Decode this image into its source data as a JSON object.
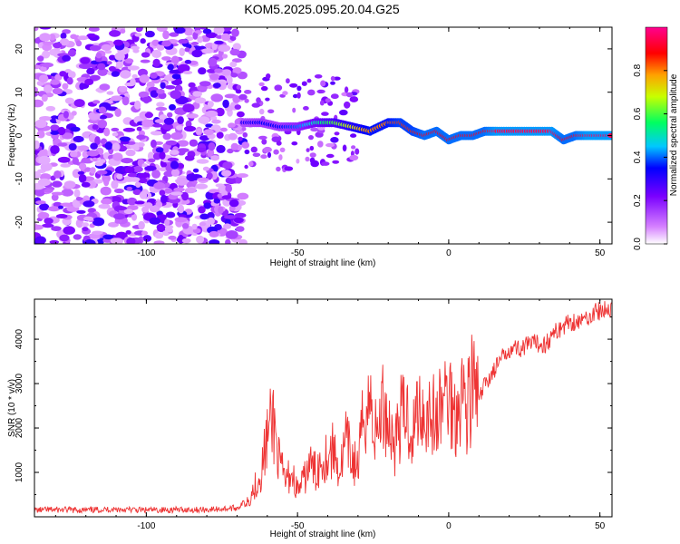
{
  "title": "KOM5.2025.095.20.04.G25",
  "colors": {
    "series_line": "#ee3333",
    "colorbar": [
      "#ffffff",
      "#a020f0",
      "#0000ff",
      "#00ffff",
      "#00ff00",
      "#ffff00",
      "#ff0000",
      "#ff0080"
    ]
  },
  "chart_data": [
    {
      "type": "heatmap",
      "xlabel": "Height of straight line (km)",
      "ylabel": "Frequency (Hz)",
      "xlim": [
        -137,
        54
      ],
      "ylim": [
        -25,
        25
      ],
      "x_ticks": [
        "-100",
        "-50",
        "0",
        "50"
      ],
      "y_ticks": [
        "20",
        "10",
        "0",
        "-10",
        "-20"
      ],
      "colorbar": {
        "label": "Normalized spectral amplitude",
        "range": [
          0,
          1
        ],
        "ticks": [
          "0.0",
          "0.2",
          "0.4",
          "0.6",
          "0.8"
        ]
      },
      "signal_track": {
        "x": [
          -68,
          -62,
          -56,
          -50,
          -44,
          -38,
          -32,
          -26,
          -20,
          -16,
          -12,
          -8,
          -4,
          0,
          4,
          8,
          12,
          16,
          22,
          28,
          34,
          38,
          42,
          46,
          50,
          54
        ],
        "freq": [
          3,
          3,
          2,
          2,
          3,
          3,
          2,
          1,
          3,
          3,
          1,
          0,
          1,
          -1,
          0,
          0,
          1,
          1,
          1,
          1,
          1,
          -1,
          0,
          0,
          0,
          0
        ],
        "amplitude": [
          0.3,
          0.35,
          0.35,
          0.4,
          0.5,
          0.6,
          0.7,
          0.8,
          0.8,
          0.85,
          0.85,
          0.9,
          0.9,
          0.9,
          0.9,
          0.9,
          0.9,
          0.95,
          0.95,
          0.95,
          0.95,
          0.9,
          0.9,
          0.95,
          0.95,
          0.95
        ]
      }
    },
    {
      "type": "line",
      "xlabel": "Height of straight line (km)",
      "ylabel": "SNR (10 * v/v)",
      "xlim": [
        -137,
        54
      ],
      "ylim": [
        0,
        4900
      ],
      "x_ticks": [
        "-100",
        "-50",
        "0",
        "50"
      ],
      "y_ticks": [
        "4000",
        "3000",
        "2000",
        "1000"
      ],
      "series": [
        {
          "x": [
            -137,
            -130,
            -120,
            -110,
            -100,
            -90,
            -80,
            -70,
            -66,
            -62,
            -60,
            -58,
            -56,
            -54,
            -52,
            -50,
            -48,
            -46,
            -44,
            -42,
            -40,
            -38,
            -36,
            -34,
            -32,
            -30,
            -28,
            -26,
            -24,
            -22,
            -20,
            -18,
            -16,
            -14,
            -12,
            -10,
            -8,
            -6,
            -4,
            -2,
            0,
            2,
            4,
            6,
            8,
            10,
            12,
            14,
            16,
            18,
            20,
            24,
            28,
            32,
            36,
            40,
            44,
            48,
            52,
            54
          ],
          "y": [
            150,
            160,
            150,
            170,
            150,
            160,
            160,
            200,
            400,
            1000,
            1800,
            2200,
            1200,
            800,
            1000,
            600,
            800,
            1200,
            1000,
            1300,
            1400,
            1500,
            1000,
            1700,
            1300,
            1100,
            2400,
            2600,
            1800,
            2500,
            2200,
            1600,
            2200,
            2400,
            1800,
            2600,
            2300,
            2400,
            2100,
            2600,
            2800,
            2300,
            2900,
            2500,
            3000,
            2600,
            3000,
            3200,
            3400,
            3600,
            3800,
            3800,
            3900,
            3900,
            4200,
            4400,
            4400,
            4600,
            4650,
            4700
          ]
        }
      ]
    }
  ]
}
